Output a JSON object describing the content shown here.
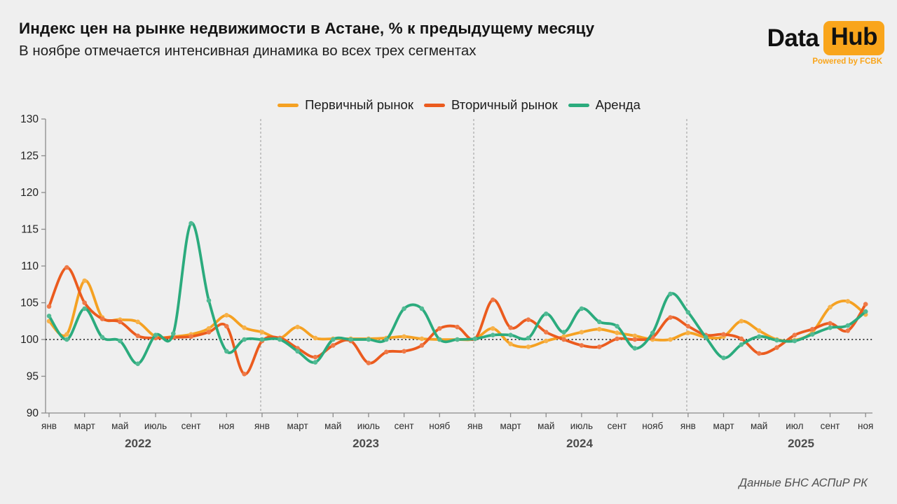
{
  "header": {
    "title": "Индекс цен на рынке недвижимости в Астане, % к предыдущему месяцу",
    "subtitle": "В ноябре отмечается интенсивная динамика во всех трех сегментах"
  },
  "logo": {
    "part1": "Data",
    "part2": "Hub",
    "tagline": "Powered by FCBK",
    "accent_color": "#F9A51B"
  },
  "source_note": "Данные БНС АСПиР РК",
  "chart_data": {
    "type": "line",
    "title": "Индекс цен на рынке недвижимости в Астане, % к предыдущему месяцу",
    "ylim": [
      90,
      130
    ],
    "yticks": [
      90,
      95,
      100,
      105,
      110,
      115,
      120,
      125,
      130
    ],
    "baseline": 100,
    "grid": false,
    "legend_position": "top",
    "x_tick_labels": [
      "янв",
      "март",
      "май",
      "июль",
      "сент",
      "ноя",
      "янв",
      "март",
      "май",
      "июль",
      "сент",
      "нояб",
      "янв",
      "март",
      "май",
      "июль",
      "сент",
      "нояб",
      "янв",
      "март",
      "май",
      "июл",
      "сент",
      "ноя"
    ],
    "year_labels": [
      "2022",
      "2023",
      "2024",
      "2025"
    ],
    "x": [
      "2022-01",
      "2022-02",
      "2022-03",
      "2022-04",
      "2022-05",
      "2022-06",
      "2022-07",
      "2022-08",
      "2022-09",
      "2022-10",
      "2022-11",
      "2022-12",
      "2023-01",
      "2023-02",
      "2023-03",
      "2023-04",
      "2023-05",
      "2023-06",
      "2023-07",
      "2023-08",
      "2023-09",
      "2023-10",
      "2023-11",
      "2023-12",
      "2024-01",
      "2024-02",
      "2024-03",
      "2024-04",
      "2024-05",
      "2024-06",
      "2024-07",
      "2024-08",
      "2024-09",
      "2024-10",
      "2024-11",
      "2024-12",
      "2025-01",
      "2025-02",
      "2025-03",
      "2025-04",
      "2025-05",
      "2025-06",
      "2025-07",
      "2025-08",
      "2025-09",
      "2025-10",
      "2025-11"
    ],
    "series": [
      {
        "name": "Первичный рынок",
        "color": "#F5A122",
        "values": [
          102.5,
          100.7,
          108.0,
          103.0,
          102.7,
          102.4,
          100.4,
          100.4,
          100.7,
          101.5,
          103.3,
          101.6,
          101.0,
          100.2,
          101.7,
          100.2,
          100.1,
          100.1,
          100.1,
          100.2,
          100.4,
          100.1,
          100.0,
          100.0,
          100.1,
          101.5,
          99.4,
          99.0,
          99.8,
          100.4,
          101.0,
          101.4,
          100.9,
          100.5,
          100.0,
          100.0,
          100.9,
          100.3,
          100.4,
          102.5,
          101.2,
          100.0,
          99.9,
          101.0,
          104.4,
          105.2,
          103.4
        ]
      },
      {
        "name": "Вторичный рынок",
        "color": "#EB5B1E",
        "values": [
          104.5,
          109.8,
          105.0,
          102.8,
          102.4,
          100.5,
          100.2,
          100.3,
          100.4,
          101.0,
          101.8,
          95.3,
          99.8,
          100.2,
          98.8,
          97.6,
          99.2,
          99.8,
          96.8,
          98.3,
          98.4,
          99.2,
          101.5,
          101.7,
          100.1,
          105.4,
          101.6,
          102.7,
          101.0,
          100.0,
          99.2,
          99.0,
          100.1,
          100.0,
          100.3,
          103.0,
          101.8,
          100.6,
          100.7,
          100.1,
          98.1,
          98.9,
          100.6,
          101.4,
          102.2,
          101.2,
          104.8
        ]
      },
      {
        "name": "Аренда",
        "color": "#2BAB7D",
        "values": [
          103.2,
          100.0,
          104.2,
          100.3,
          99.8,
          96.7,
          100.6,
          100.8,
          115.8,
          105.3,
          98.4,
          100.0,
          100.0,
          100.0,
          98.4,
          96.9,
          100.0,
          100.0,
          100.0,
          100.0,
          104.2,
          104.2,
          100.0,
          100.0,
          100.1,
          100.6,
          100.6,
          100.2,
          103.5,
          101.0,
          104.2,
          102.4,
          101.8,
          98.8,
          100.9,
          106.2,
          103.7,
          100.3,
          97.5,
          99.3,
          100.4,
          99.9,
          99.8,
          100.7,
          101.6,
          101.9,
          103.8
        ]
      }
    ]
  }
}
